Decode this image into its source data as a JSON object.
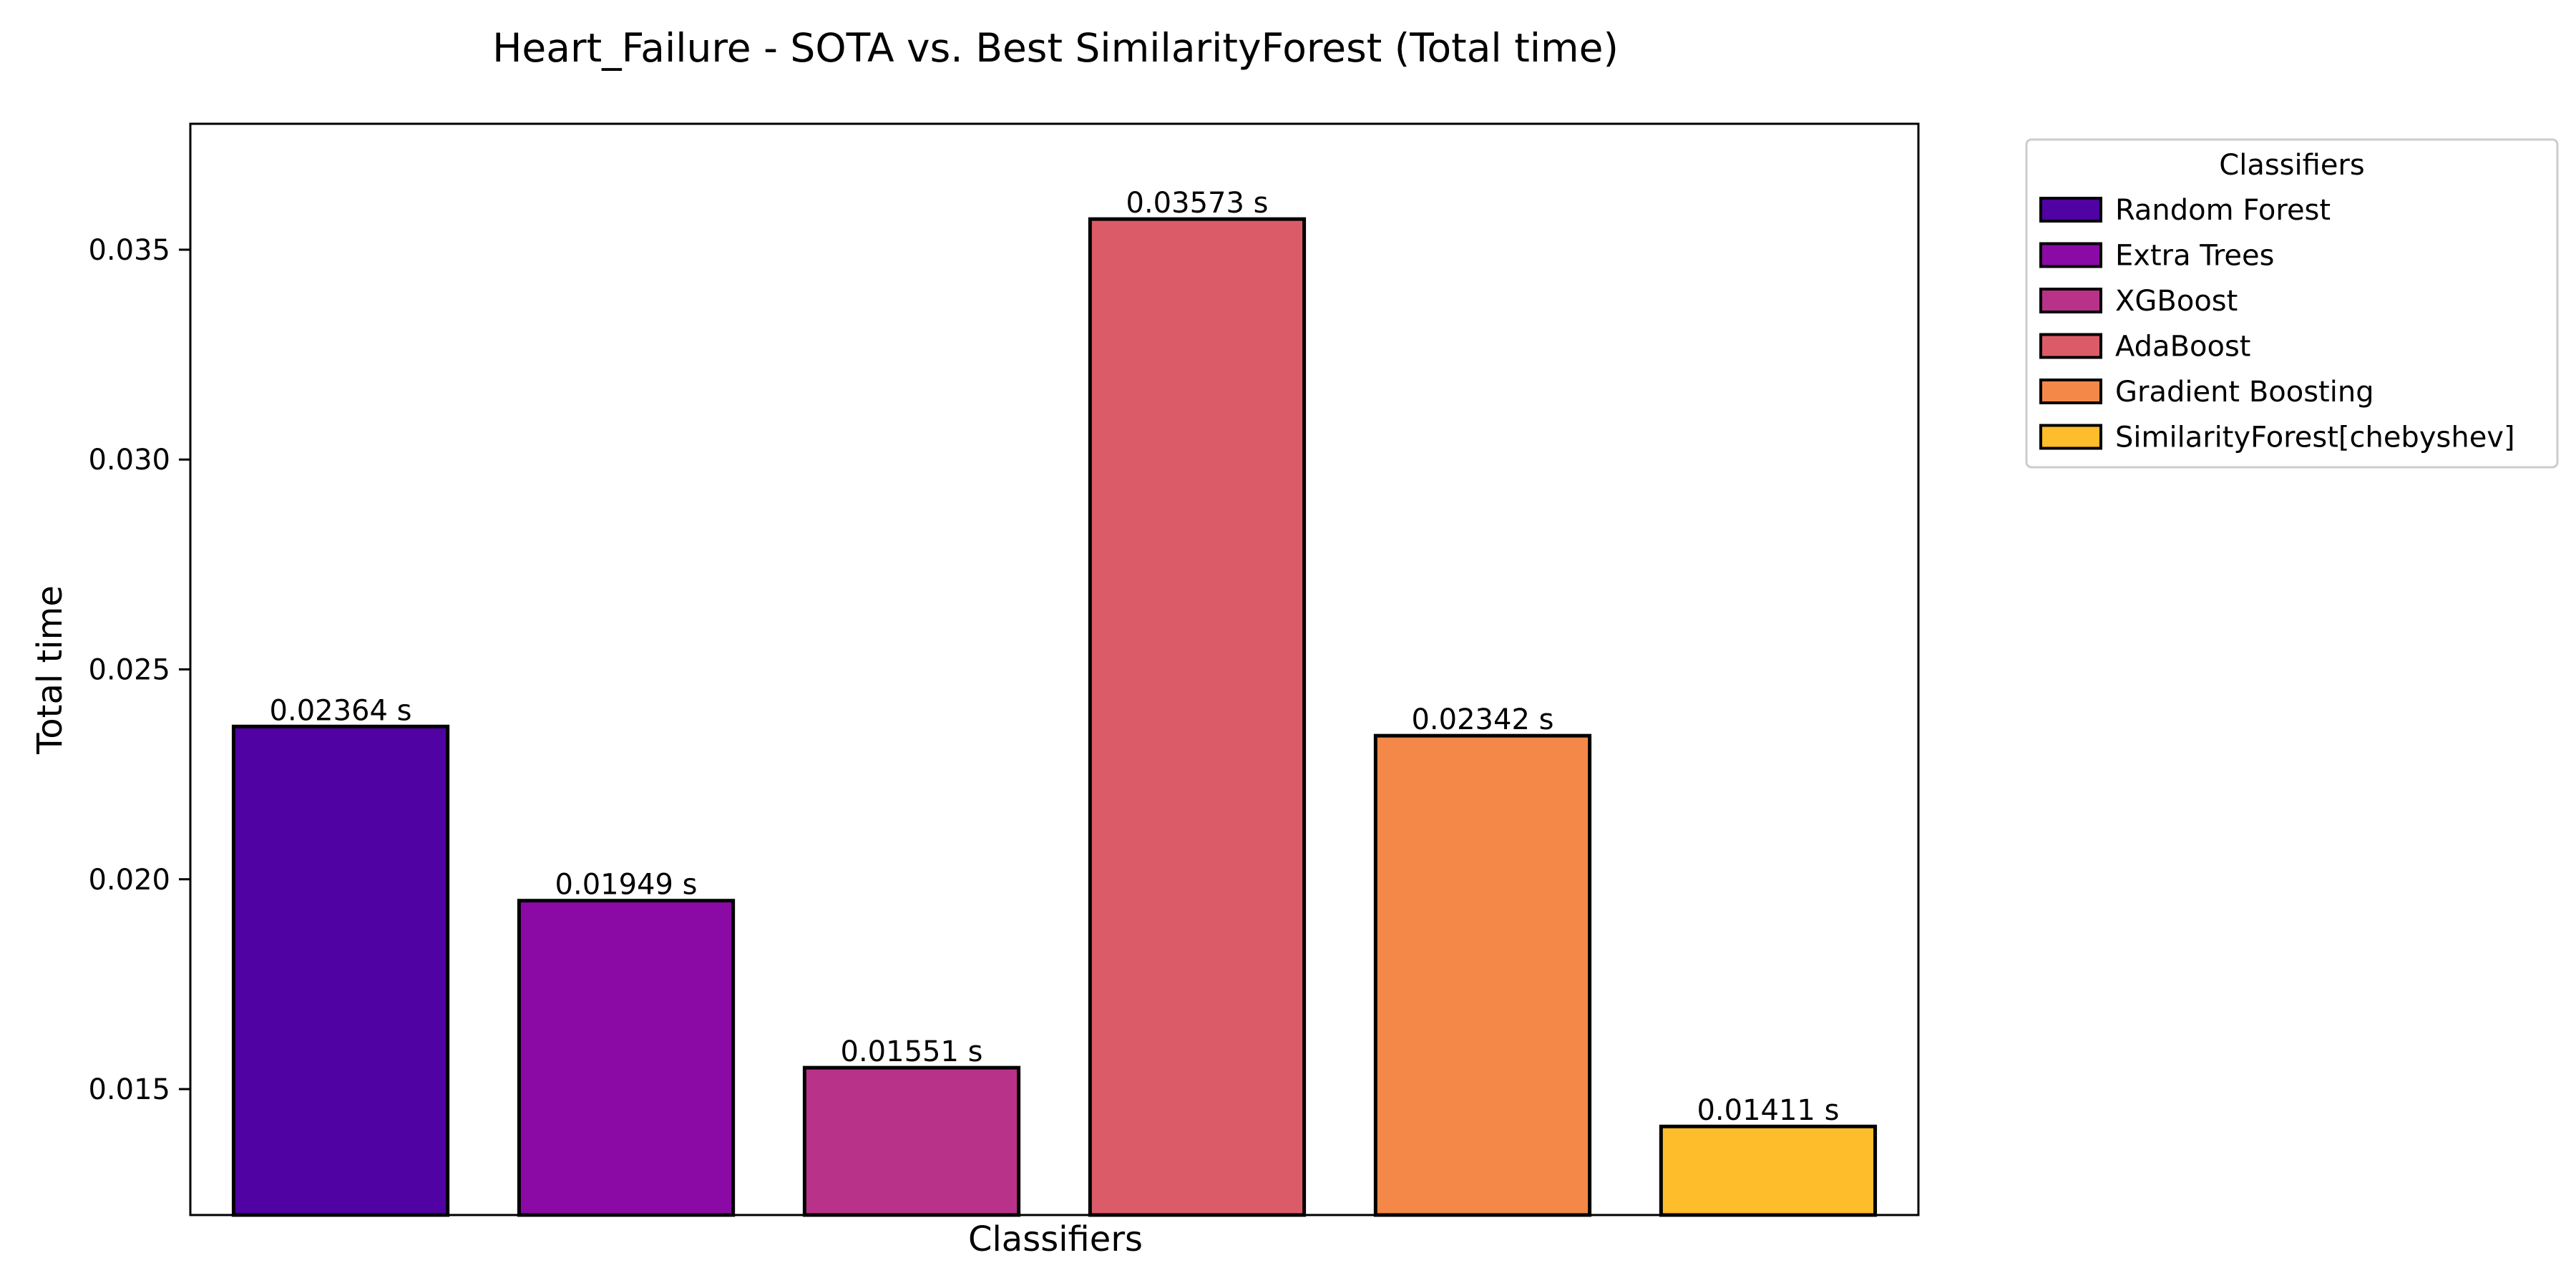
{
  "chart_data": {
    "type": "bar",
    "title": "Heart_Failure - SOTA vs. Best SimilarityForest (Total time)",
    "xlabel": "Classifiers",
    "ylabel": "Total time",
    "ylim": [
      0.012,
      0.038
    ],
    "yticks": [
      0.015,
      0.02,
      0.025,
      0.03,
      0.035
    ],
    "ytick_labels": [
      "0.015",
      "0.020",
      "0.025",
      "0.030",
      "0.035"
    ],
    "grid": false,
    "categories": [
      "Random Forest",
      "Extra Trees",
      "XGBoost",
      "AdaBoost",
      "Gradient Boosting",
      "SimilarityForest[chebyshev]"
    ],
    "values": [
      0.02364,
      0.01949,
      0.01551,
      0.03573,
      0.02342,
      0.01411
    ],
    "value_labels": [
      "0.02364 s",
      "0.01949 s",
      "0.01551 s",
      "0.03573 s",
      "0.02342 s",
      "0.01411 s"
    ],
    "colors": [
      "#5002a2",
      "#8b0aa5",
      "#b83289",
      "#db5c68",
      "#f48849",
      "#febd2a"
    ],
    "edge_color": "#000000",
    "legend": {
      "title": "Classifiers",
      "placement": "outside upper right",
      "entries": [
        "Random Forest",
        "Extra Trees",
        "XGBoost",
        "AdaBoost",
        "Gradient Boosting",
        "SimilarityForest[chebyshev]"
      ]
    }
  }
}
